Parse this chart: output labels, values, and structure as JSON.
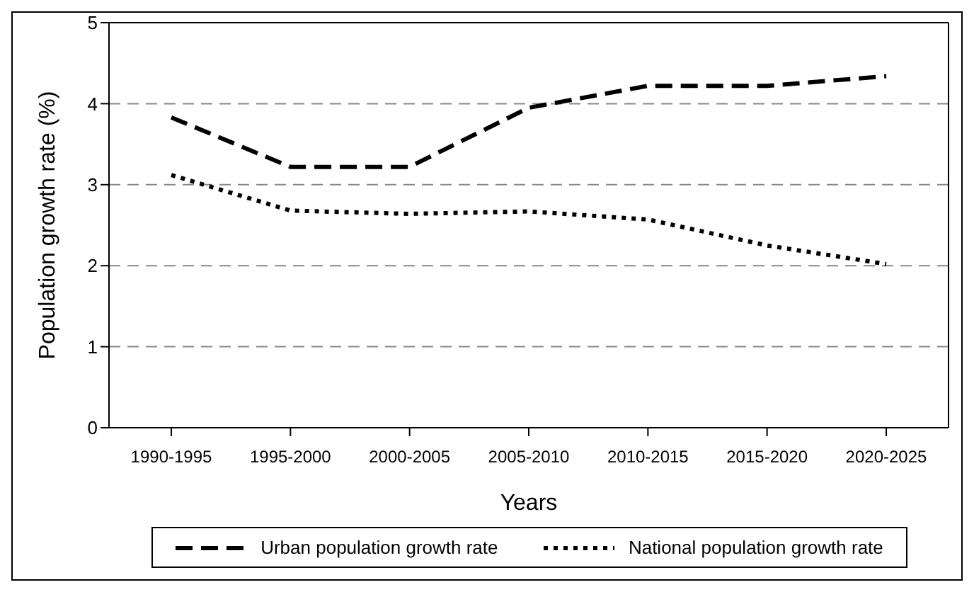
{
  "chart_data": {
    "type": "line",
    "xlabel": "Years",
    "ylabel": "Population growth rate (%)",
    "categories": [
      "1990-1995",
      "1995-2000",
      "2000-2005",
      "2005-2010",
      "2010-2015",
      "2015-2020",
      "2020-2025"
    ],
    "series": [
      {
        "name": "Urban population growth rate",
        "color": "#000000",
        "line_style": "dashed",
        "values": [
          3.83,
          3.22,
          3.22,
          3.95,
          4.22,
          4.22,
          4.34
        ]
      },
      {
        "name": "National population growth rate",
        "color": "#000000",
        "line_style": "dotted",
        "values": [
          3.12,
          2.68,
          2.64,
          2.67,
          2.57,
          2.25,
          2.02
        ]
      }
    ],
    "ylim": [
      0,
      5
    ],
    "yticks": [
      0,
      1,
      2,
      3,
      4,
      5
    ],
    "grid": "y",
    "legend": "bottom",
    "marker": "none"
  }
}
